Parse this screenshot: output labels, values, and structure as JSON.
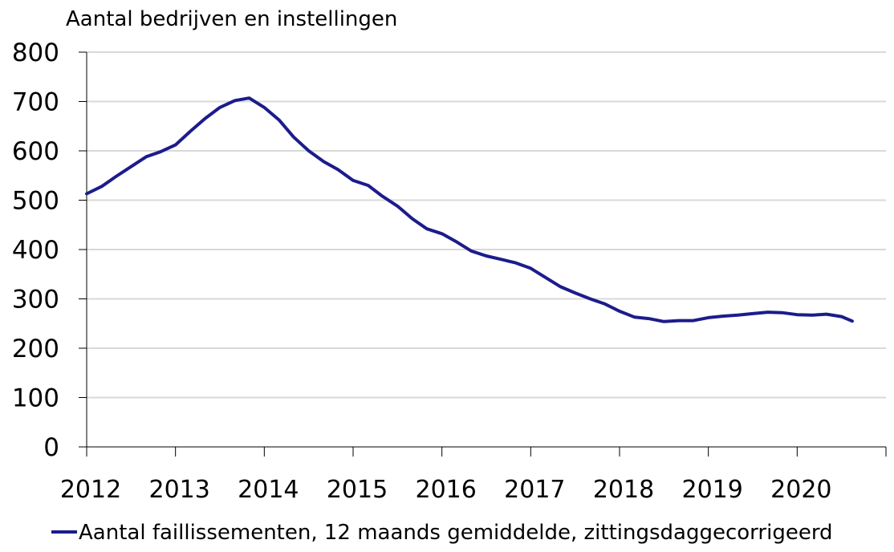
{
  "chart_data": {
    "type": "line",
    "ylabel": "Aantal bedrijven en instellingen",
    "ylim": [
      0,
      800
    ],
    "yticks": [
      "0",
      "100",
      "200",
      "300",
      "400",
      "500",
      "600",
      "700",
      "800"
    ],
    "xticks": [
      "2012",
      "2013",
      "2014",
      "2015",
      "2016",
      "2017",
      "2018",
      "2019",
      "2020"
    ],
    "xlim": [
      2012,
      2021
    ],
    "grid": "horizontal",
    "legend": "bottom",
    "series": [
      {
        "name": "Aantal faillissementen, 12 maands gemiddelde, zittingsdaggecorrigeerd",
        "color": "#1c1c8c",
        "points": [
          [
            2012.0,
            513
          ],
          [
            2012.17,
            528
          ],
          [
            2012.33,
            548
          ],
          [
            2012.5,
            568
          ],
          [
            2012.67,
            588
          ],
          [
            2012.83,
            598
          ],
          [
            2013.0,
            612
          ],
          [
            2013.17,
            640
          ],
          [
            2013.33,
            665
          ],
          [
            2013.5,
            688
          ],
          [
            2013.67,
            702
          ],
          [
            2013.83,
            707
          ],
          [
            2014.0,
            688
          ],
          [
            2014.17,
            662
          ],
          [
            2014.33,
            628
          ],
          [
            2014.5,
            600
          ],
          [
            2014.67,
            578
          ],
          [
            2014.83,
            562
          ],
          [
            2015.0,
            540
          ],
          [
            2015.17,
            530
          ],
          [
            2015.33,
            508
          ],
          [
            2015.5,
            488
          ],
          [
            2015.67,
            462
          ],
          [
            2015.83,
            442
          ],
          [
            2016.0,
            432
          ],
          [
            2016.17,
            415
          ],
          [
            2016.33,
            397
          ],
          [
            2016.5,
            387
          ],
          [
            2016.67,
            380
          ],
          [
            2016.83,
            373
          ],
          [
            2017.0,
            362
          ],
          [
            2017.17,
            343
          ],
          [
            2017.33,
            325
          ],
          [
            2017.5,
            312
          ],
          [
            2017.67,
            300
          ],
          [
            2017.83,
            290
          ],
          [
            2018.0,
            275
          ],
          [
            2018.17,
            263
          ],
          [
            2018.33,
            260
          ],
          [
            2018.5,
            254
          ],
          [
            2018.67,
            256
          ],
          [
            2018.83,
            256
          ],
          [
            2019.0,
            262
          ],
          [
            2019.17,
            265
          ],
          [
            2019.33,
            267
          ],
          [
            2019.5,
            270
          ],
          [
            2019.67,
            273
          ],
          [
            2019.83,
            272
          ],
          [
            2020.0,
            268
          ],
          [
            2020.17,
            267
          ],
          [
            2020.33,
            269
          ],
          [
            2020.5,
            264
          ],
          [
            2020.62,
            255
          ]
        ]
      }
    ]
  }
}
